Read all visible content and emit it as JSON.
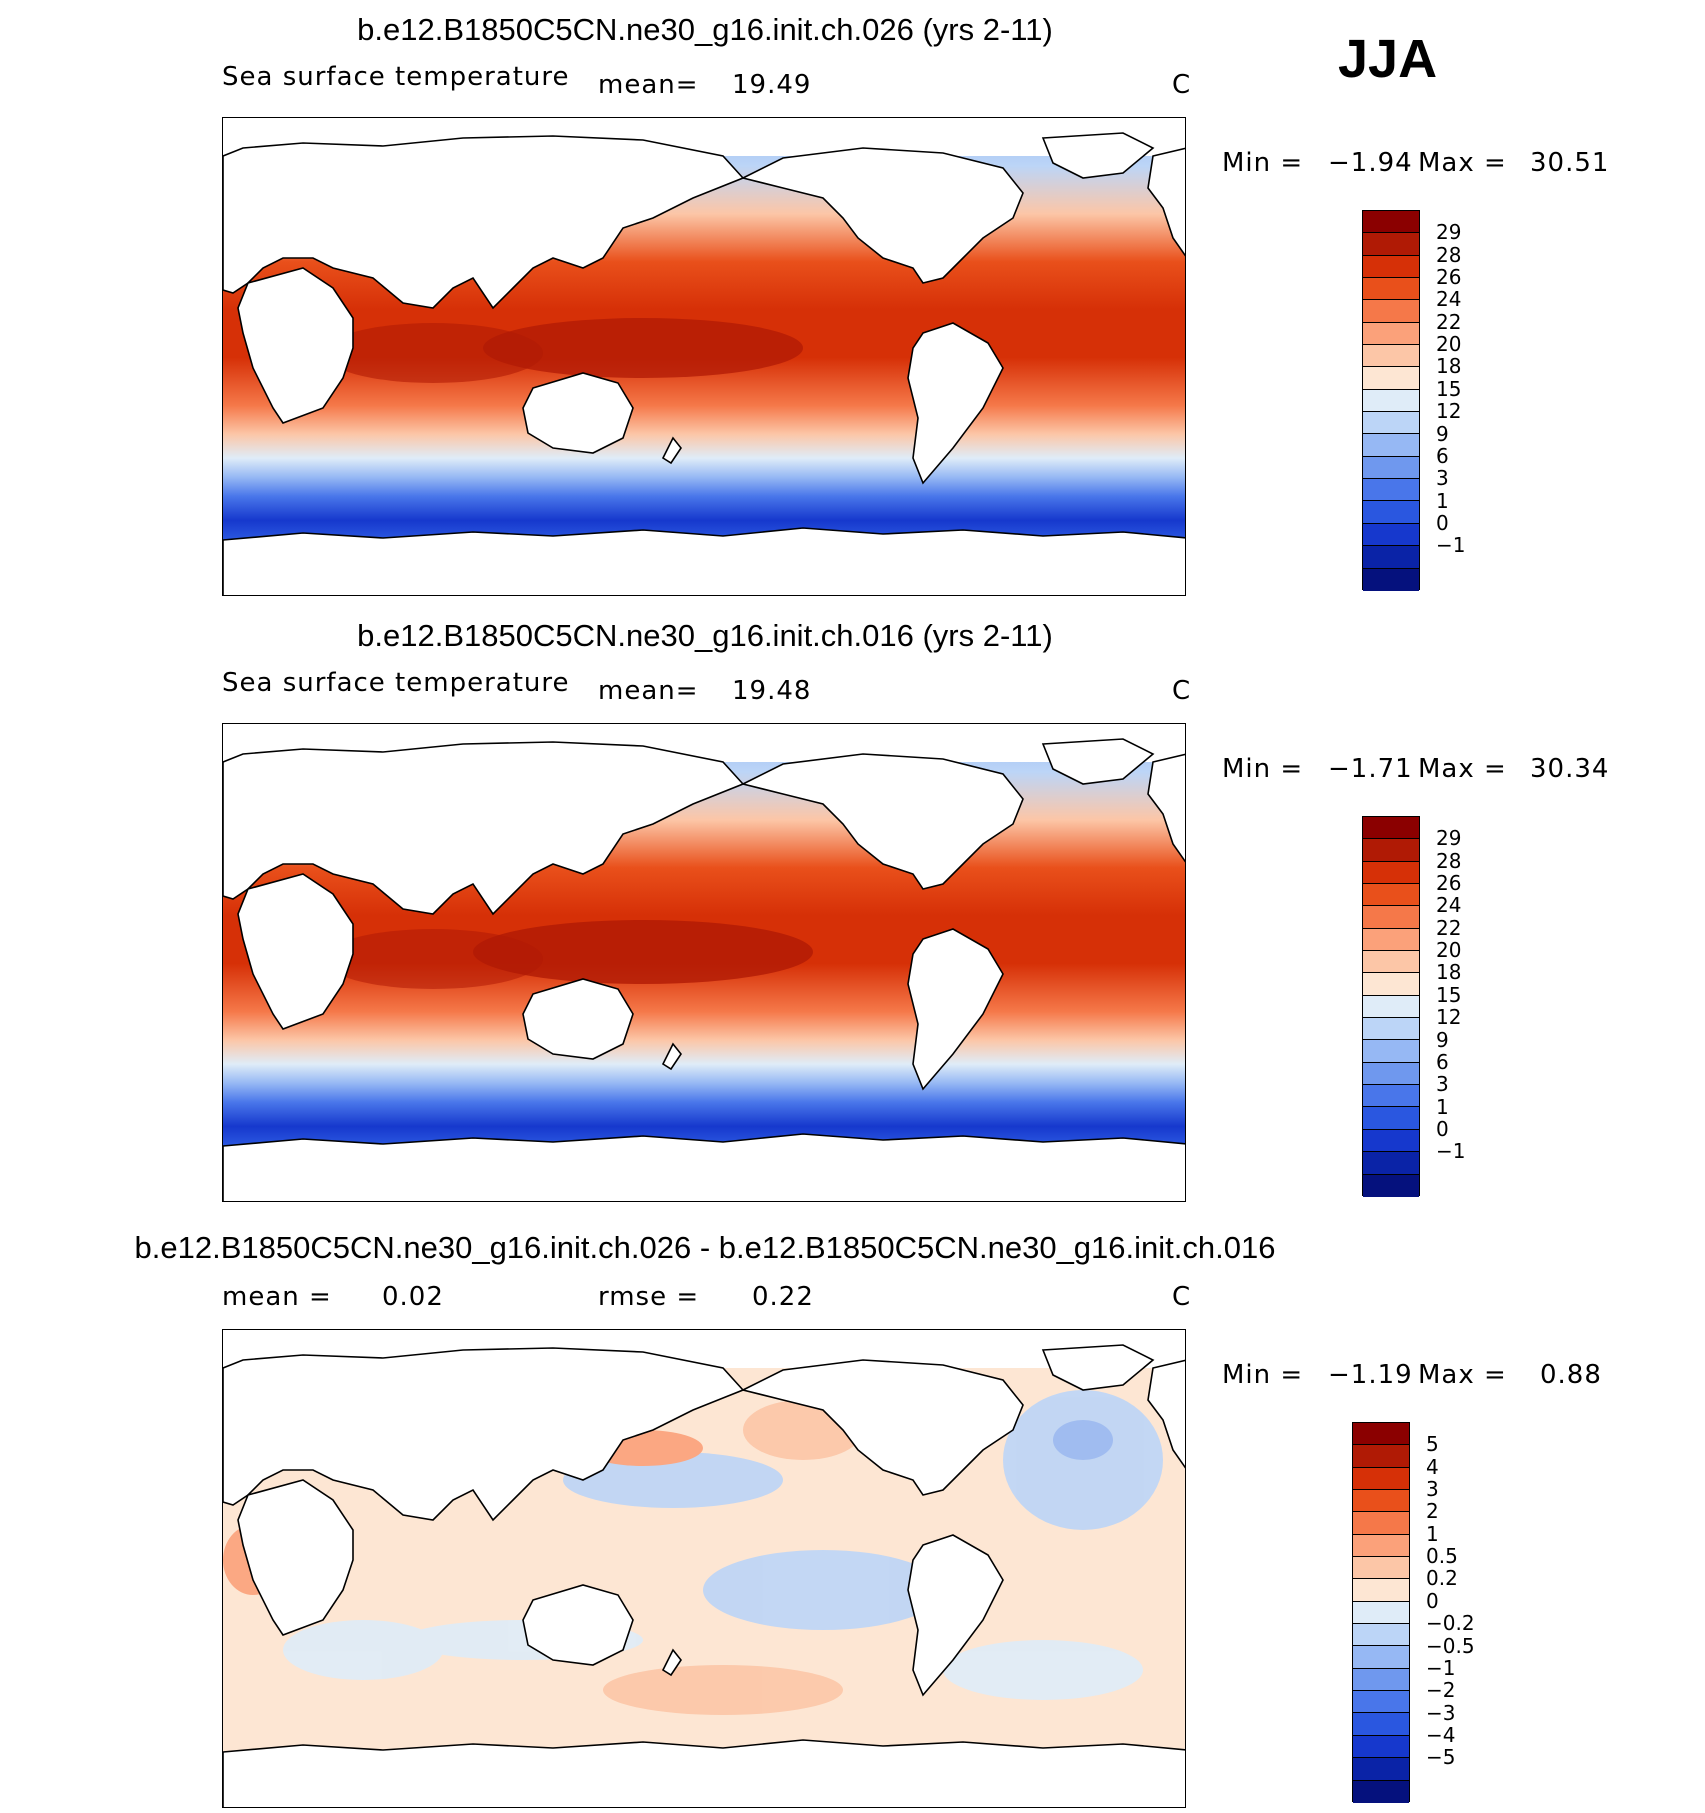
{
  "season": "JJA",
  "panels": [
    {
      "title": "b.e12.B1850C5CN.ne30_g16.init.ch.026 (yrs 2-11)",
      "variable": "Sea surface temperature",
      "mean_label": "mean=",
      "mean_value": "19.49",
      "units": "C",
      "min_label": "Min =",
      "min_value": "−1.94",
      "max_label": "Max =",
      "max_value": "30.51",
      "palette": "abs"
    },
    {
      "title": "b.e12.B1850C5CN.ne30_g16.init.ch.016 (yrs 2-11)",
      "variable": "Sea surface temperature",
      "mean_label": "mean=",
      "mean_value": "19.48",
      "units": "C",
      "min_label": "Min =",
      "min_value": "−1.71",
      "max_label": "Max =",
      "max_value": "30.34",
      "palette": "abs"
    },
    {
      "title": "b.e12.B1850C5CN.ne30_g16.init.ch.026 - b.e12.B1850C5CN.ne30_g16.init.ch.016",
      "mean_label": "mean =",
      "mean_value": "0.02",
      "rmse_label": "rmse =",
      "rmse_value": "0.22",
      "units": "C",
      "min_label": "Min =",
      "min_value": "−1.19",
      "max_label": "Max =",
      "max_value": "0.88",
      "palette": "diff"
    }
  ],
  "colorbars": {
    "abs": {
      "colors": [
        "#8b0000",
        "#b01a05",
        "#d63007",
        "#e9501b",
        "#f57849",
        "#fba17a",
        "#fcc6a7",
        "#fde6d3",
        "#dfecf8",
        "#bcd5f7",
        "#96b8f4",
        "#6f98ee",
        "#4976ea",
        "#2a57e0",
        "#1638cd",
        "#0a23a7",
        "#05117d"
      ],
      "labels": [
        "29",
        "28",
        "26",
        "24",
        "22",
        "20",
        "18",
        "15",
        "12",
        "9",
        "6",
        "3",
        "1",
        "0",
        "−1"
      ]
    },
    "diff": {
      "colors": [
        "#8b0000",
        "#b01a05",
        "#d63007",
        "#e9501b",
        "#f57849",
        "#fba17a",
        "#fcc6a7",
        "#fde6d3",
        "#dfecf8",
        "#bcd5f7",
        "#96b8f4",
        "#6f98ee",
        "#4976ea",
        "#2a57e0",
        "#1638cd",
        "#0a23a7",
        "#05117d"
      ],
      "labels": [
        "5",
        "4",
        "3",
        "2",
        "1",
        "0.5",
        "0.2",
        "0",
        "−0.2",
        "−0.5",
        "−1",
        "−2",
        "−3",
        "−4",
        "−5"
      ]
    }
  }
}
